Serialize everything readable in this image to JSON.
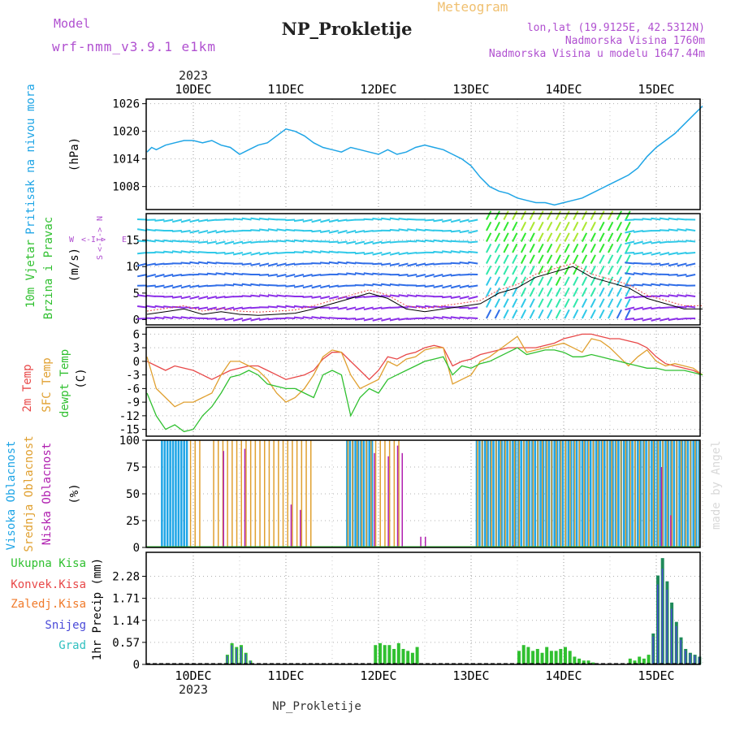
{
  "header": {
    "model_label": "Model",
    "model_name": "wrf-nmm_v3.9.1 e1km",
    "title": "NP_Prokletije",
    "meteogram": "Meteogram",
    "lonlat": "lon,lat (19.9125E, 42.5312N)",
    "elevation": "Nadmorska Visina 1760m",
    "model_elevation": "Nadmorska Visina u modelu 1647.44m",
    "year_top": "2023",
    "year_bottom": "2023",
    "footer": "NP_Prokletije",
    "credit": "made by Angel"
  },
  "colors": {
    "pressure": "#1fa5e6",
    "t2m": "#e84848",
    "tsfc": "#e0a030",
    "dewpt": "#30c030",
    "cloud_high": "#1fa5e6",
    "cloud_mid": "#e0a030",
    "cloud_low": "#b020b0",
    "precip_total": "#30c030",
    "precip_conv": "#e84848",
    "precip_frozen": "#f07a2a",
    "precip_snow": "#4a4ad8",
    "precip_graupel": "#30c0c0",
    "wind_axis": "#b050d0"
  },
  "chart_data": [
    {
      "type": "line",
      "panel": "pressure",
      "ylabel": "Pritisak na nivou mora",
      "unit": "(hPa)",
      "yticks": [
        "1026",
        "1020",
        "1014",
        "1008"
      ],
      "ylim": [
        1003,
        1027
      ],
      "x_labels": [
        "10DEC",
        "11DEC",
        "12DEC",
        "13DEC",
        "14DEC",
        "15DEC"
      ],
      "x": [
        -0.5,
        -0.45,
        -0.4,
        -0.3,
        -0.2,
        -0.1,
        0,
        0.1,
        0.2,
        0.3,
        0.4,
        0.5,
        0.6,
        0.7,
        0.8,
        0.9,
        1,
        1.1,
        1.2,
        1.3,
        1.4,
        1.5,
        1.6,
        1.7,
        1.8,
        1.9,
        2,
        2.1,
        2.2,
        2.3,
        2.4,
        2.5,
        2.6,
        2.7,
        2.8,
        2.9,
        3,
        3.1,
        3.2,
        3.3,
        3.4,
        3.5,
        3.6,
        3.7,
        3.8,
        3.9,
        4,
        4.1,
        4.2,
        4.3,
        4.4,
        4.5,
        4.6,
        4.7,
        4.8,
        4.9,
        5,
        5.1,
        5.2,
        5.3,
        5.4,
        5.5
      ],
      "values": [
        1015.5,
        1016.5,
        1016,
        1017,
        1017.5,
        1018,
        1018,
        1017.5,
        1018,
        1017,
        1016.5,
        1015,
        1016,
        1017,
        1017.5,
        1019,
        1020.5,
        1020,
        1019,
        1017.5,
        1016.5,
        1016,
        1015.5,
        1016.5,
        1016,
        1015.5,
        1015,
        1016,
        1015,
        1015.5,
        1016.5,
        1017,
        1016.5,
        1016,
        1015,
        1014,
        1012.5,
        1010,
        1008,
        1007,
        1006.5,
        1005.5,
        1005,
        1004.5,
        1004.5,
        1004,
        1004.5,
        1005,
        1005.5,
        1006.5,
        1007.5,
        1008.5,
        1009.5,
        1010.5,
        1012,
        1014.5,
        1016.5,
        1018,
        1019.5,
        1021.5,
        1023.5,
        1025.5
      ]
    },
    {
      "type": "line",
      "panel": "wind",
      "ylabel": "10m Vjetar",
      "ylabel2": "Brzina i Pravac",
      "unit": "(m/s)",
      "compass": [
        "W",
        "<-",
        "I",
        "->",
        "E",
        "S",
        "<-",
        "I",
        "->",
        "N"
      ],
      "yticks": [
        "15",
        "10",
        "5",
        "0"
      ],
      "ylim": [
        -1,
        20
      ],
      "x": [
        -0.5,
        -0.3,
        -0.1,
        0.1,
        0.3,
        0.5,
        0.7,
        0.9,
        1.1,
        1.3,
        1.5,
        1.7,
        1.9,
        2.1,
        2.3,
        2.5,
        2.7,
        2.9,
        3.1,
        3.3,
        3.5,
        3.7,
        3.9,
        4.1,
        4.3,
        4.5,
        4.7,
        4.9,
        5.1,
        5.3,
        5.5
      ],
      "values": [
        1,
        1.5,
        2,
        1,
        1.5,
        1,
        0.8,
        1,
        1.2,
        2,
        3,
        4,
        5,
        4,
        2,
        1.5,
        2,
        2.5,
        3,
        5,
        6,
        8,
        9,
        10,
        8,
        7,
        6,
        4,
        3,
        2,
        2
      ]
    },
    {
      "type": "line",
      "panel": "temperature",
      "ylabel": "2m Temp",
      "ylabel2": "SFC Temp",
      "ylabel3": "dewpt Temp",
      "unit": "(C)",
      "yticks": [
        "6",
        "3",
        "0",
        "-3",
        "-6",
        "-9",
        "-12",
        "-15"
      ],
      "ylim": [
        -16.5,
        7.5
      ],
      "x": [
        -0.5,
        -0.4,
        -0.3,
        -0.2,
        -0.1,
        0,
        0.1,
        0.2,
        0.3,
        0.4,
        0.5,
        0.6,
        0.7,
        0.8,
        0.9,
        1,
        1.1,
        1.2,
        1.3,
        1.4,
        1.5,
        1.6,
        1.7,
        1.8,
        1.9,
        2,
        2.1,
        2.2,
        2.3,
        2.4,
        2.5,
        2.6,
        2.7,
        2.8,
        2.9,
        3,
        3.1,
        3.2,
        3.3,
        3.4,
        3.5,
        3.6,
        3.7,
        3.8,
        3.9,
        4,
        4.1,
        4.2,
        4.3,
        4.4,
        4.5,
        4.6,
        4.7,
        4.8,
        4.9,
        5,
        5.1,
        5.2,
        5.3,
        5.4,
        5.5
      ],
      "series": [
        {
          "name": "2m Temp",
          "values": [
            0,
            -1,
            -2,
            -1,
            -1.5,
            -2,
            -3,
            -4,
            -3,
            -2,
            -1.5,
            -1,
            -1,
            -2,
            -3,
            -4,
            -3.5,
            -3,
            -2,
            0.5,
            2,
            2,
            0,
            -2,
            -4,
            -2,
            1,
            0.5,
            1.5,
            2,
            3,
            3.5,
            3,
            -1,
            0,
            0.5,
            1.5,
            2,
            2.5,
            3,
            3,
            3,
            3,
            3.5,
            4,
            5,
            5.5,
            6,
            6,
            5.5,
            5,
            5,
            4.5,
            4,
            3,
            1,
            -0.5,
            -1,
            -1.5,
            -2,
            -3
          ]
        },
        {
          "name": "SFC Temp",
          "values": [
            1,
            -6,
            -8,
            -10,
            -9,
            -9,
            -8,
            -7,
            -3,
            0,
            0,
            -1,
            -2,
            -4,
            -7,
            -9,
            -8,
            -6,
            -3,
            1,
            2.5,
            2,
            -3,
            -6,
            -5,
            -4,
            0,
            -1,
            0.5,
            1,
            2.5,
            3,
            3,
            -5,
            -4,
            -3,
            0,
            1,
            2.5,
            4,
            5.5,
            2,
            2.5,
            3,
            3.5,
            4,
            3,
            2,
            5,
            4.5,
            3,
            1,
            -1,
            1,
            2.5,
            0,
            -1,
            -0.5,
            -1,
            -1.5,
            -3
          ]
        },
        {
          "name": "dewpt Temp",
          "values": [
            -7,
            -12,
            -15,
            -14,
            -15.5,
            -15,
            -12,
            -10,
            -7,
            -3.5,
            -3,
            -2,
            -3,
            -5,
            -5.5,
            -6,
            -6,
            -7,
            -8,
            -3,
            -2,
            -3,
            -12,
            -8,
            -6,
            -7,
            -4,
            -3,
            -2,
            -1,
            0,
            0.5,
            1,
            -3,
            -1,
            -1.5,
            -0.5,
            0,
            1,
            2,
            3,
            1.5,
            2,
            2.5,
            2.5,
            2,
            1,
            1,
            1.5,
            1,
            0.5,
            0,
            -0.5,
            -1,
            -1.5,
            -1.5,
            -2,
            -2,
            -2,
            -2.5,
            -3
          ]
        }
      ]
    },
    {
      "type": "bar",
      "panel": "clouds",
      "ylabel": "Visoka Oblacnost",
      "ylabel2": "Srednja Oblacnost",
      "ylabel3": "Niska Oblacnost",
      "unit": "(%)",
      "yticks": [
        "100",
        "75",
        "50",
        "25",
        "0"
      ],
      "ylim": [
        0,
        100
      ],
      "high_segments": [
        [
          -0.35,
          -0.05
        ],
        [
          1.65,
          1.95
        ],
        [
          3.05,
          5.5
        ]
      ],
      "mid_segments": [
        [
          -0.05,
          0.05
        ],
        [
          0.2,
          1.3
        ],
        [
          1.65,
          2.2
        ],
        [
          3.05,
          5.5
        ]
      ],
      "low_bars": [
        [
          0.32,
          90
        ],
        [
          0.55,
          92
        ],
        [
          1.05,
          40
        ],
        [
          1.15,
          35
        ],
        [
          1.95,
          88
        ],
        [
          2.1,
          85
        ],
        [
          2.2,
          95
        ],
        [
          2.25,
          88
        ],
        [
          2.45,
          10
        ],
        [
          2.5,
          10
        ],
        [
          3.45,
          2
        ],
        [
          5.05,
          75
        ],
        [
          5.15,
          30
        ]
      ]
    },
    {
      "type": "bar",
      "panel": "precipitation",
      "legend": [
        "Ukupna Kisa",
        "Konvek.Kisa",
        "Zaledj.Kisa",
        "Snijeg",
        "Grad"
      ],
      "ylabel": "1hr Precip",
      "unit": "(mm)",
      "yticks": [
        "2.28",
        "1.71",
        "1.14",
        "0.57",
        "0"
      ],
      "ylim": [
        0,
        2.9
      ],
      "x": [
        0.35,
        0.4,
        0.45,
        0.5,
        0.55,
        0.6,
        1.95,
        2.0,
        2.05,
        2.1,
        2.15,
        2.2,
        2.25,
        2.3,
        2.35,
        2.4,
        3.5,
        3.55,
        3.6,
        3.65,
        3.7,
        3.75,
        3.8,
        3.85,
        3.9,
        3.95,
        4.0,
        4.05,
        4.1,
        4.15,
        4.2,
        4.25,
        4.3,
        4.7,
        4.75,
        4.8,
        4.85,
        4.9,
        4.95,
        5.0,
        5.05,
        5.1,
        5.15,
        5.2,
        5.25,
        5.3,
        5.35,
        5.4,
        5.45
      ],
      "values": [
        0.25,
        0.55,
        0.45,
        0.5,
        0.3,
        0.1,
        0.5,
        0.55,
        0.5,
        0.5,
        0.4,
        0.55,
        0.4,
        0.35,
        0.3,
        0.45,
        0.35,
        0.5,
        0.45,
        0.35,
        0.4,
        0.3,
        0.45,
        0.35,
        0.35,
        0.4,
        0.45,
        0.35,
        0.2,
        0.15,
        0.1,
        0.1,
        0.05,
        0.15,
        0.1,
        0.2,
        0.15,
        0.25,
        0.8,
        2.3,
        2.75,
        2.15,
        1.6,
        1.1,
        0.7,
        0.4,
        0.3,
        0.25,
        0.2
      ]
    }
  ]
}
